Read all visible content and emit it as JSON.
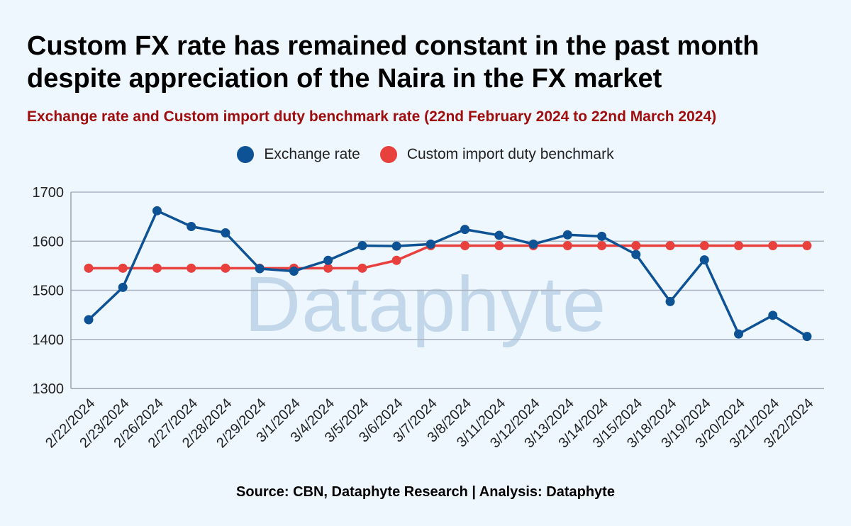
{
  "header": {
    "title_line1": "Custom FX rate has remained constant in the past month",
    "title_line2": "despite appreciation of the Naira in the FX market",
    "subtitle": "Exchange rate and Custom import duty benchmark rate (22nd February 2024 to 22nd March 2024)"
  },
  "watermark": "Dataphyte",
  "footer": {
    "source": "Source: CBN, Dataphyte Research | Analysis: Dataphyte"
  },
  "chart_data": {
    "type": "line",
    "categories": [
      "2/22/2024",
      "2/23/2024",
      "2/26/2024",
      "2/27/2024",
      "2/28/2024",
      "2/29/2024",
      "3/1/2024",
      "3/4/2024",
      "3/5/2024",
      "3/6/2024",
      "3/7/2024",
      "3/8/2024",
      "3/11/2024",
      "3/12/2024",
      "3/13/2024",
      "3/14/2024",
      "3/15/2024",
      "3/18/2024",
      "3/19/2024",
      "3/20/2024",
      "3/21/2024",
      "3/22/2024"
    ],
    "series": [
      {
        "name": "Exchange rate",
        "color": "#0e5296",
        "values": [
          1440,
          1506,
          1662,
          1630,
          1617,
          1544,
          1539,
          1561,
          1591,
          1590,
          1594,
          1624,
          1612,
          1594,
          1613,
          1610,
          1573,
          1477,
          1562,
          1411,
          1449,
          1406
        ]
      },
      {
        "name": "Custom import duty benchmark",
        "color": "#e8403c",
        "values": [
          1545,
          1545,
          1545,
          1545,
          1545,
          1545,
          1545,
          1545,
          1545,
          1561,
          1591,
          1591,
          1591,
          1591,
          1591,
          1591,
          1591,
          1591,
          1591,
          1591,
          1591,
          1591
        ]
      }
    ],
    "ylim": [
      1300,
      1700
    ],
    "yticks": [
      1300,
      1400,
      1500,
      1600,
      1700
    ],
    "xlabel": "",
    "ylabel": "",
    "grid": true,
    "legend_position": "top-center"
  }
}
